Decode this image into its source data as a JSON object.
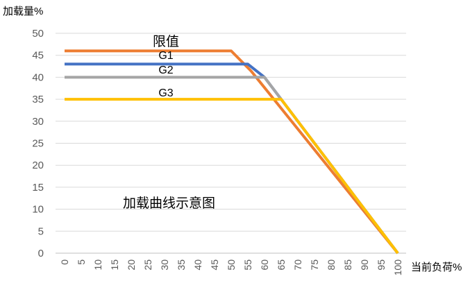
{
  "chart_data": {
    "type": "line",
    "ylabel": "加载量%",
    "xlabel": "当前负荷%",
    "xlim": [
      0,
      100
    ],
    "ylim": [
      0,
      50
    ],
    "x_ticks": [
      0,
      5,
      10,
      15,
      20,
      25,
      30,
      35,
      40,
      45,
      50,
      55,
      60,
      65,
      70,
      75,
      80,
      85,
      90,
      95,
      100
    ],
    "y_ticks": [
      0,
      5,
      10,
      15,
      20,
      25,
      30,
      35,
      40,
      45,
      50
    ],
    "grid": "horizontal",
    "legend": "none",
    "series": [
      {
        "name": "限值",
        "color": "#ED7D31",
        "points": [
          [
            0,
            46
          ],
          [
            50,
            46
          ],
          [
            56,
            41.4
          ],
          [
            100,
            0
          ]
        ]
      },
      {
        "name": "G1",
        "color": "#4472C4",
        "points": [
          [
            0,
            43
          ],
          [
            55,
            43
          ],
          [
            60,
            40
          ],
          [
            100,
            0
          ]
        ]
      },
      {
        "name": "G2",
        "color": "#A5A5A5",
        "points": [
          [
            0,
            40
          ],
          [
            60,
            40
          ],
          [
            65,
            35
          ],
          [
            100,
            0
          ]
        ]
      },
      {
        "name": "G3",
        "color": "#FFC000",
        "points": [
          [
            0,
            35
          ],
          [
            65,
            35
          ],
          [
            100,
            0
          ]
        ]
      }
    ],
    "annotations": [
      {
        "text": "限值",
        "x": 30,
        "y": 48.1
      },
      {
        "text": "G1",
        "x": 30,
        "y": 45.1
      },
      {
        "text": "G2",
        "x": 30,
        "y": 41.8
      },
      {
        "text": "G3",
        "x": 30,
        "y": 36.6
      },
      {
        "text": "加载曲线示意图",
        "x": 30,
        "y": 11.5
      }
    ]
  }
}
